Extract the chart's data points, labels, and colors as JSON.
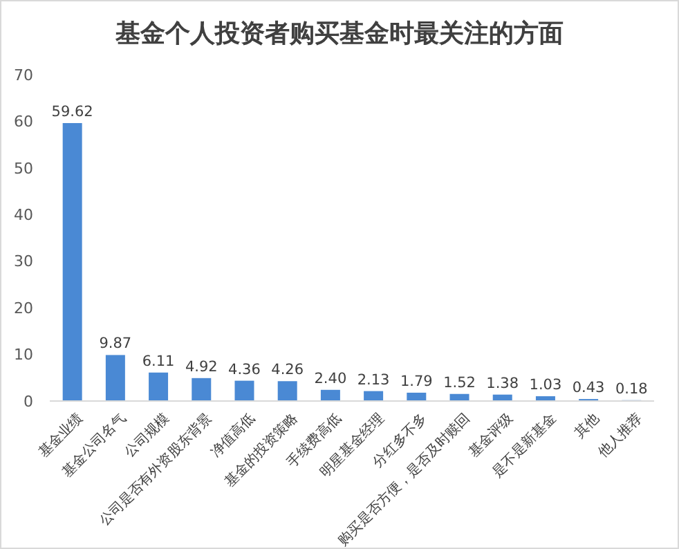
{
  "chart_data": {
    "type": "bar",
    "title": "基金个人投资者购买基金时最关注的方面",
    "categories": [
      "基金业绩",
      "基金公司名气",
      "公司规模",
      "公司是否有外资股东背景",
      "净值高低",
      "基金的投资策略",
      "手续费高低",
      "明星基金经理",
      "分红多不多",
      "购买是否方便，是否及时赎回",
      "基金评级",
      "是不是新基金",
      "其他",
      "他人推荐"
    ],
    "values": [
      59.62,
      9.87,
      6.11,
      4.92,
      4.36,
      4.26,
      2.4,
      2.13,
      1.79,
      1.52,
      1.38,
      1.03,
      0.43,
      0.18
    ],
    "value_labels": [
      "59.62",
      "9.87",
      "6.11",
      "4.92",
      "4.36",
      "4.26",
      "2.40",
      "2.13",
      "1.79",
      "1.52",
      "1.38",
      "1.03",
      "0.43",
      "0.18"
    ],
    "color": "#4a89d4",
    "ylim": [
      0,
      70
    ],
    "yticks": [
      0,
      10,
      20,
      30,
      40,
      50,
      60,
      70
    ],
    "grid": false
  }
}
